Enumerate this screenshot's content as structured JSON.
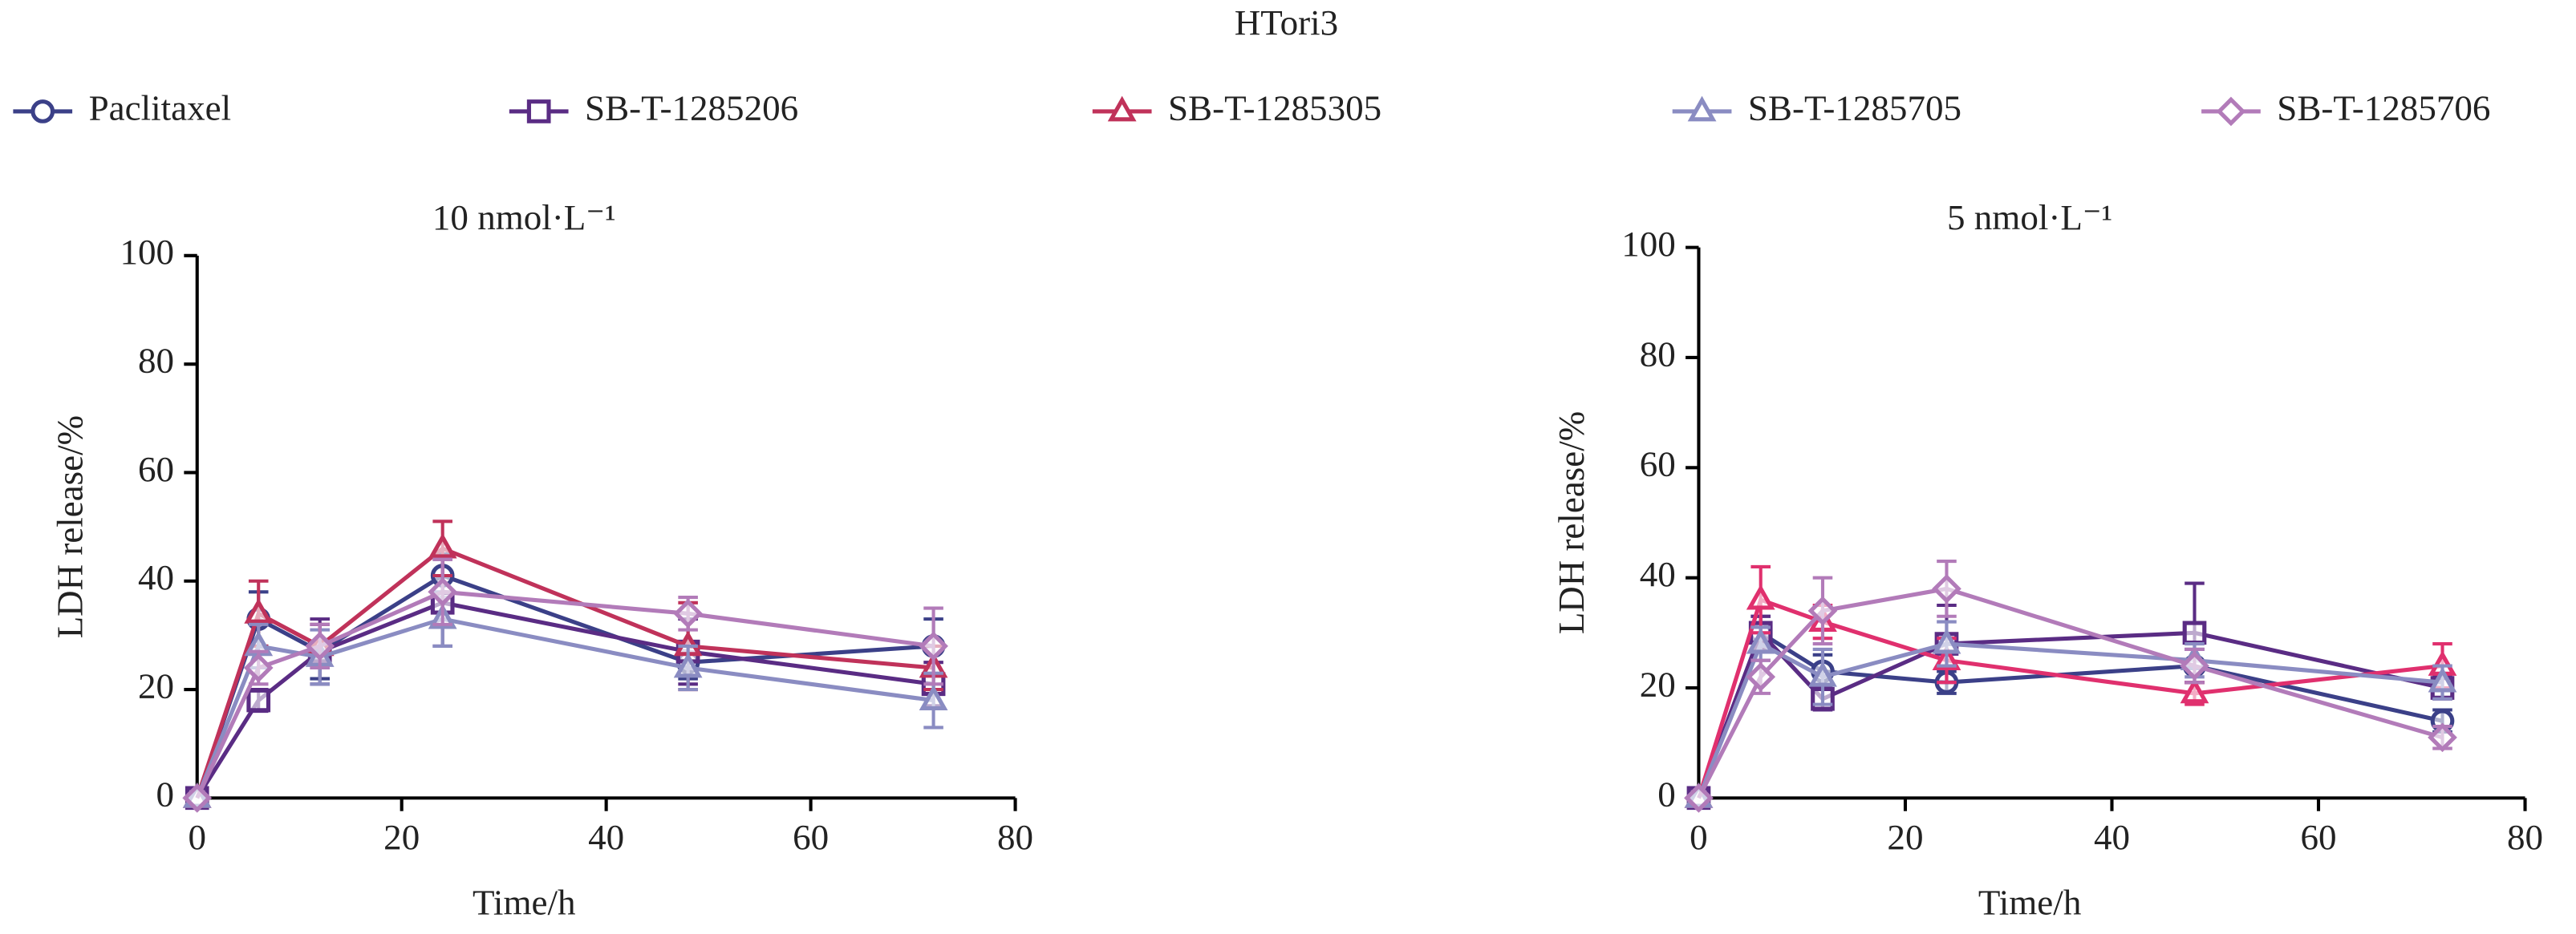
{
  "title": "HTori3",
  "chart_data": [
    {
      "type": "line",
      "title": "10 nmol·L⁻¹",
      "xlabel": "Time/h",
      "ylabel": "LDH release/%",
      "x": [
        0,
        6,
        12,
        24,
        48,
        72
      ],
      "xlim": [
        0,
        80
      ],
      "xticks": [
        0,
        20,
        40,
        60,
        80
      ],
      "ylim": [
        0,
        100
      ],
      "yticks": [
        0,
        20,
        40,
        60,
        80,
        100
      ],
      "series": [
        {
          "name": "Paclitaxel",
          "color": "#3b4088",
          "marker": "circle",
          "values": [
            0,
            33,
            27,
            41,
            25,
            28
          ],
          "errors": [
            0,
            5,
            5,
            4,
            3,
            5
          ]
        },
        {
          "name": "SB-T-1285206",
          "color": "#5a2c84",
          "marker": "square",
          "values": [
            0,
            18,
            27,
            36,
            27,
            21
          ],
          "errors": [
            0,
            2,
            6,
            8,
            6,
            4
          ]
        },
        {
          "name": "SB-T-1285305",
          "color": "#c0325a",
          "marker": "triangle",
          "values": [
            0,
            34,
            28,
            46,
            28,
            24
          ],
          "errors": [
            0,
            6,
            4,
            5,
            8,
            4
          ]
        },
        {
          "name": "SB-T-1285705",
          "color": "#8a8cc2",
          "marker": "triangle",
          "values": [
            0,
            28,
            26,
            33,
            24,
            18
          ],
          "errors": [
            0,
            4,
            5,
            5,
            4,
            5
          ]
        },
        {
          "name": "SB-T-1285706",
          "color": "#b27bb9",
          "marker": "diamond",
          "values": [
            0,
            24,
            28,
            38,
            34,
            28
          ],
          "errors": [
            0,
            3,
            4,
            6,
            3,
            7
          ]
        }
      ]
    },
    {
      "type": "line",
      "title": "5 nmol·L⁻¹",
      "xlabel": "Time/h",
      "ylabel": "LDH release/%",
      "x": [
        0,
        6,
        12,
        24,
        48,
        72
      ],
      "xlim": [
        0,
        80
      ],
      "xticks": [
        0,
        20,
        40,
        60,
        80
      ],
      "ylim": [
        0,
        100
      ],
      "yticks": [
        0,
        20,
        40,
        60,
        80,
        100
      ],
      "series": [
        {
          "name": "Paclitaxel",
          "color": "#3b4088",
          "marker": "circle",
          "values": [
            0,
            30,
            23,
            21,
            24,
            14
          ],
          "errors": [
            0,
            3,
            3,
            2,
            3,
            2
          ]
        },
        {
          "name": "SB-T-1285206",
          "color": "#5a2c84",
          "marker": "square",
          "values": [
            0,
            30,
            18,
            28,
            30,
            20
          ],
          "errors": [
            0,
            3,
            2,
            7,
            9,
            2
          ]
        },
        {
          "name": "SB-T-1285305",
          "color": "#e0306e",
          "marker": "triangle",
          "values": [
            0,
            36,
            32,
            25,
            19,
            24
          ],
          "errors": [
            0,
            6,
            3,
            4,
            2,
            4
          ]
        },
        {
          "name": "SB-T-1285705",
          "color": "#8a8cc2",
          "marker": "triangle",
          "values": [
            0,
            28,
            22,
            28,
            25,
            21
          ],
          "errors": [
            0,
            3,
            5,
            4,
            3,
            3
          ]
        },
        {
          "name": "SB-T-1285706",
          "color": "#b27bb9",
          "marker": "diamond",
          "values": [
            0,
            22,
            34,
            38,
            24,
            11
          ],
          "errors": [
            0,
            3,
            6,
            5,
            3,
            2
          ]
        }
      ]
    }
  ]
}
